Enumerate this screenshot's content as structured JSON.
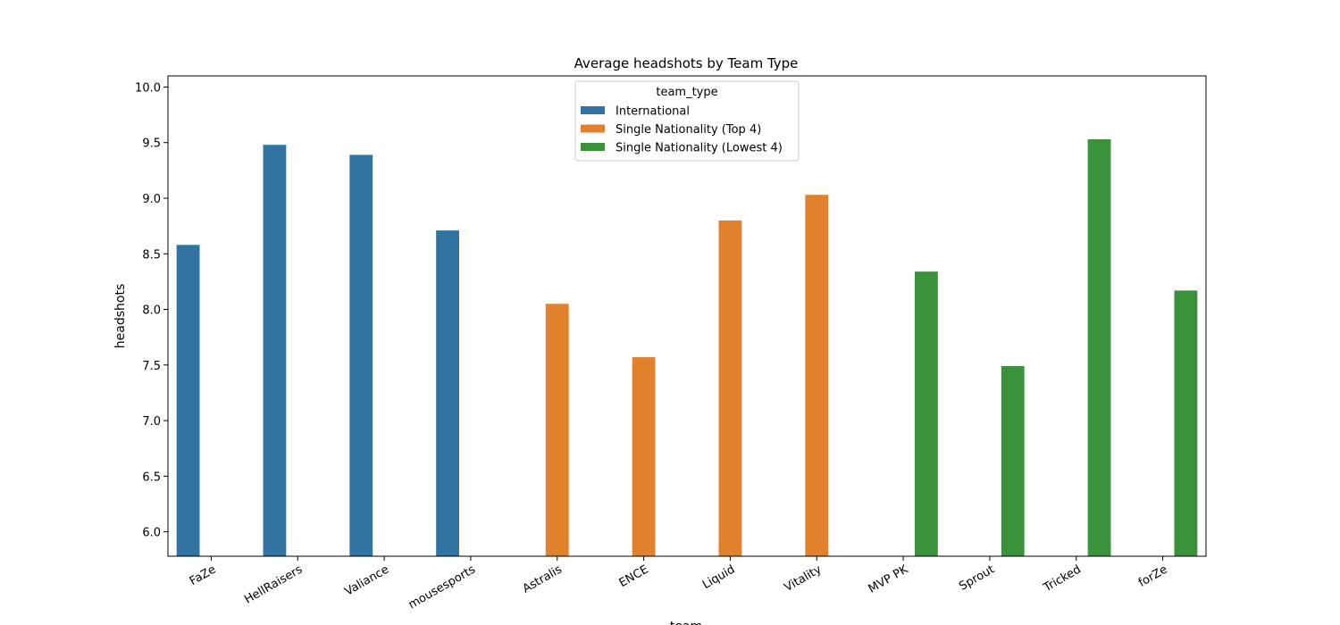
{
  "chart_data": {
    "type": "bar",
    "title": "Average headshots by Team Type",
    "xlabel": "team",
    "ylabel": "headshots",
    "ylim": [
      5.78,
      10.1
    ],
    "yticks": [
      "6.0",
      "6.5",
      "7.0",
      "7.5",
      "8.0",
      "8.5",
      "9.0",
      "9.5",
      "10.0"
    ],
    "grid": false,
    "categories": [
      "FaZe",
      "HellRaisers",
      "Valiance",
      "mousesports",
      "Astralis",
      "ENCE",
      "Liquid",
      "Vitality",
      "MVP PK",
      "Sprout",
      "Tricked",
      "forZe"
    ],
    "legend": {
      "title": "team_type",
      "placement": "upper center"
    },
    "series": [
      {
        "name": "International",
        "color": "#3274a1",
        "values": [
          8.58,
          9.48,
          9.39,
          8.71,
          null,
          null,
          null,
          null,
          null,
          null,
          null,
          null
        ]
      },
      {
        "name": "Single Nationality (Top 4)",
        "color": "#e1812c",
        "values": [
          null,
          null,
          null,
          null,
          8.05,
          7.57,
          8.8,
          9.03,
          null,
          null,
          null,
          null
        ]
      },
      {
        "name": "Single Nationality (Lowest 4)",
        "color": "#3a923a",
        "values": [
          null,
          null,
          null,
          null,
          null,
          null,
          null,
          null,
          8.34,
          7.49,
          9.53,
          8.17
        ]
      }
    ]
  }
}
